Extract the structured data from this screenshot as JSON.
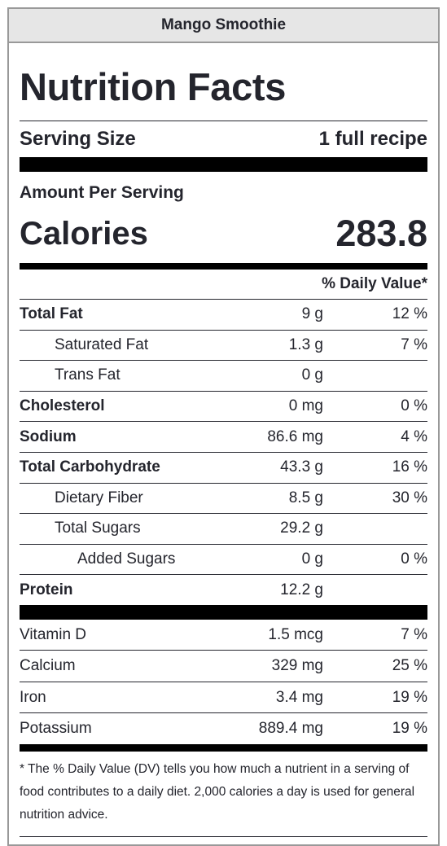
{
  "recipe_name": "Mango Smoothie",
  "title": "Nutrition Facts",
  "serving": {
    "label": "Serving Size",
    "value": "1 full recipe"
  },
  "amount_per_serving": "Amount Per Serving",
  "calories": {
    "label": "Calories",
    "value": "283.8"
  },
  "daily_value_header": "% Daily Value*",
  "nutrients": [
    {
      "name": "Total Fat",
      "amount": "9 g",
      "dv": "12 %"
    },
    {
      "name": "Saturated Fat",
      "amount": "1.3 g",
      "dv": "7 %"
    },
    {
      "name": "Trans Fat",
      "amount": "0 g",
      "dv": ""
    },
    {
      "name": "Cholesterol",
      "amount": "0 mg",
      "dv": "0 %"
    },
    {
      "name": "Sodium",
      "amount": "86.6 mg",
      "dv": "4 %"
    },
    {
      "name": "Total Carbohydrate",
      "amount": "43.3 g",
      "dv": "16 %"
    },
    {
      "name": "Dietary Fiber",
      "amount": "8.5 g",
      "dv": "30 %"
    },
    {
      "name": "Total Sugars",
      "amount": "29.2 g",
      "dv": ""
    },
    {
      "name": "Added Sugars",
      "amount": "0 g",
      "dv": "0 %"
    },
    {
      "name": "Protein",
      "amount": "12.2 g",
      "dv": ""
    }
  ],
  "vitamins": [
    {
      "name": "Vitamin D",
      "amount": "1.5 mcg",
      "dv": "7 %"
    },
    {
      "name": "Calcium",
      "amount": "329 mg",
      "dv": "25 %"
    },
    {
      "name": "Iron",
      "amount": "3.4 mg",
      "dv": "19 %"
    },
    {
      "name": "Potassium",
      "amount": "889.4 mg",
      "dv": "19 %"
    }
  ],
  "footnote": "* The % Daily Value (DV) tells you how much a nutrient in a serving of food contributes to a daily diet. 2,000 calories a day is used for general nutrition advice."
}
